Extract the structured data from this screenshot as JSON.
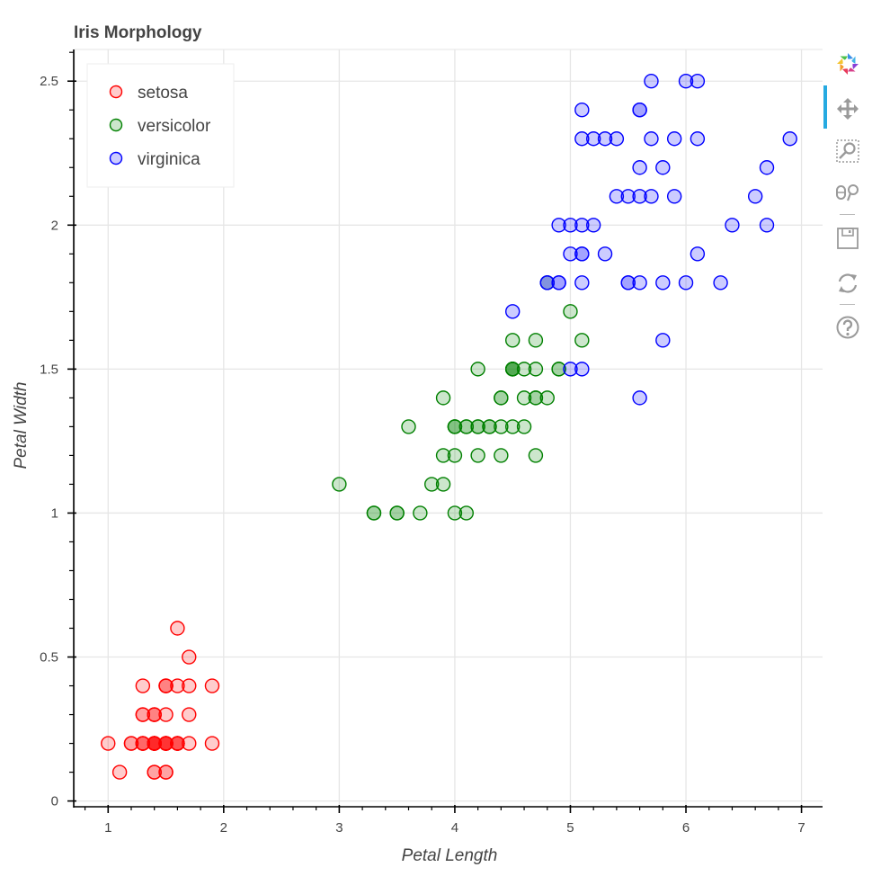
{
  "chart_data": {
    "type": "scatter",
    "title": "Iris Morphology",
    "xlabel": "Petal Length",
    "ylabel": "Petal Width",
    "xlim": [
      0.71,
      7.19
    ],
    "ylim": [
      -0.02,
      2.61
    ],
    "x_ticks": [
      1,
      2,
      3,
      4,
      5,
      6,
      7
    ],
    "x_tick_labels": [
      "1",
      "2",
      "3",
      "4",
      "5",
      "6",
      "7"
    ],
    "y_ticks": [
      0,
      0.5,
      1,
      1.5,
      2,
      2.5
    ],
    "y_tick_labels": [
      "0",
      "0.5",
      "1",
      "1.5",
      "2",
      "2.5"
    ],
    "grid": true,
    "legend_position": "top-left",
    "series": [
      {
        "name": "setosa",
        "color": "#ff0000",
        "x": [
          1.4,
          1.4,
          1.3,
          1.5,
          1.4,
          1.7,
          1.4,
          1.5,
          1.4,
          1.5,
          1.5,
          1.6,
          1.4,
          1.1,
          1.2,
          1.5,
          1.3,
          1.4,
          1.7,
          1.5,
          1.7,
          1.5,
          1.0,
          1.7,
          1.9,
          1.6,
          1.6,
          1.5,
          1.4,
          1.6,
          1.6,
          1.5,
          1.5,
          1.4,
          1.5,
          1.2,
          1.3,
          1.4,
          1.3,
          1.5,
          1.3,
          1.3,
          1.3,
          1.6,
          1.9,
          1.4,
          1.6,
          1.4,
          1.5,
          1.4
        ],
        "y": [
          0.2,
          0.2,
          0.2,
          0.2,
          0.2,
          0.4,
          0.3,
          0.2,
          0.2,
          0.1,
          0.2,
          0.2,
          0.1,
          0.1,
          0.2,
          0.4,
          0.4,
          0.3,
          0.3,
          0.3,
          0.2,
          0.4,
          0.2,
          0.5,
          0.2,
          0.2,
          0.4,
          0.2,
          0.2,
          0.2,
          0.2,
          0.4,
          0.1,
          0.2,
          0.2,
          0.2,
          0.2,
          0.1,
          0.2,
          0.2,
          0.3,
          0.3,
          0.2,
          0.6,
          0.4,
          0.3,
          0.2,
          0.2,
          0.2,
          0.2
        ]
      },
      {
        "name": "versicolor",
        "color": "#008000",
        "x": [
          4.7,
          4.5,
          4.9,
          4.0,
          4.6,
          4.5,
          4.7,
          3.3,
          4.6,
          3.9,
          3.5,
          4.2,
          4.0,
          4.7,
          3.6,
          4.4,
          4.5,
          4.1,
          4.5,
          3.9,
          4.8,
          4.0,
          4.9,
          4.7,
          4.3,
          4.4,
          4.8,
          5.0,
          4.5,
          3.5,
          3.8,
          3.7,
          3.9,
          5.1,
          4.5,
          4.5,
          4.7,
          4.4,
          4.1,
          4.0,
          4.4,
          4.6,
          4.0,
          3.3,
          4.2,
          4.2,
          4.2,
          4.3,
          3.0,
          4.1
        ],
        "y": [
          1.4,
          1.5,
          1.5,
          1.3,
          1.5,
          1.3,
          1.6,
          1.0,
          1.3,
          1.4,
          1.0,
          1.5,
          1.0,
          1.4,
          1.3,
          1.4,
          1.5,
          1.0,
          1.5,
          1.1,
          1.8,
          1.3,
          1.5,
          1.2,
          1.3,
          1.4,
          1.4,
          1.7,
          1.5,
          1.0,
          1.1,
          1.0,
          1.2,
          1.6,
          1.5,
          1.6,
          1.5,
          1.3,
          1.3,
          1.3,
          1.2,
          1.4,
          1.2,
          1.0,
          1.3,
          1.2,
          1.3,
          1.3,
          1.1,
          1.3
        ]
      },
      {
        "name": "virginica",
        "color": "#0000ff",
        "x": [
          6.0,
          5.1,
          5.9,
          5.6,
          5.8,
          6.6,
          4.5,
          6.3,
          5.8,
          6.1,
          5.1,
          5.3,
          5.5,
          5.0,
          5.1,
          5.3,
          5.5,
          6.7,
          6.9,
          5.0,
          5.7,
          4.9,
          6.7,
          4.9,
          5.7,
          6.0,
          4.8,
          4.9,
          5.6,
          5.8,
          6.1,
          6.4,
          5.6,
          5.1,
          5.6,
          6.1,
          5.6,
          5.5,
          4.8,
          5.4,
          5.6,
          5.1,
          5.1,
          5.9,
          5.7,
          5.2,
          5.0,
          5.2,
          5.4,
          5.1
        ],
        "y": [
          2.5,
          1.9,
          2.1,
          1.8,
          2.2,
          2.1,
          1.7,
          1.8,
          1.8,
          2.5,
          2.0,
          1.9,
          2.1,
          2.0,
          2.4,
          2.3,
          1.8,
          2.2,
          2.3,
          1.5,
          2.3,
          2.0,
          2.0,
          1.8,
          2.1,
          1.8,
          1.8,
          1.8,
          2.1,
          1.6,
          1.9,
          2.0,
          2.2,
          1.5,
          1.4,
          2.3,
          2.4,
          1.8,
          1.8,
          2.1,
          2.4,
          2.3,
          1.9,
          2.3,
          2.5,
          2.3,
          1.9,
          2.0,
          2.3,
          1.8
        ]
      }
    ]
  },
  "toolbar": {
    "tools": [
      {
        "name": "bokeh-logo-icon"
      },
      {
        "name": "pan-icon"
      },
      {
        "name": "box-zoom-icon"
      },
      {
        "name": "wheel-zoom-icon"
      },
      {
        "name": "save-icon"
      },
      {
        "name": "reset-icon"
      },
      {
        "name": "help-icon"
      }
    ],
    "active_color": "#26aae1",
    "icon_color": "#9a9a9a"
  }
}
